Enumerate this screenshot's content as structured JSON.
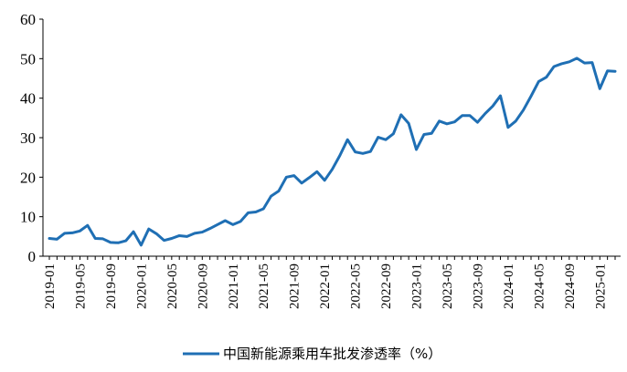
{
  "chart_data": {
    "type": "line",
    "title": "",
    "xlabel": "",
    "ylabel": "",
    "ylim": [
      0,
      60
    ],
    "yticks": [
      0,
      10,
      20,
      30,
      40,
      50,
      60
    ],
    "xtick_labels": [
      "2019-01",
      "2019-05",
      "2019-09",
      "2020-01",
      "2020-05",
      "2020-09",
      "2021-01",
      "2021-05",
      "2021-09",
      "2022-01",
      "2022-05",
      "2022-09",
      "2023-01",
      "2023-05",
      "2023-09",
      "2024-01",
      "2024-05",
      "2024-09",
      "2025-01"
    ],
    "grid": false,
    "legend_position": "bottom",
    "series": [
      {
        "name": "中国新能源乘用车批发渗透率（%）",
        "color": "#1f6fb4",
        "x": [
          "2019-01",
          "2019-02",
          "2019-03",
          "2019-04",
          "2019-05",
          "2019-06",
          "2019-07",
          "2019-08",
          "2019-09",
          "2019-10",
          "2019-11",
          "2019-12",
          "2020-01",
          "2020-02",
          "2020-03",
          "2020-04",
          "2020-05",
          "2020-06",
          "2020-07",
          "2020-08",
          "2020-09",
          "2020-10",
          "2020-11",
          "2020-12",
          "2021-01",
          "2021-02",
          "2021-03",
          "2021-04",
          "2021-05",
          "2021-06",
          "2021-07",
          "2021-08",
          "2021-09",
          "2021-10",
          "2021-11",
          "2021-12",
          "2022-01",
          "2022-02",
          "2022-03",
          "2022-04",
          "2022-05",
          "2022-06",
          "2022-07",
          "2022-08",
          "2022-09",
          "2022-10",
          "2022-11",
          "2022-12",
          "2023-01",
          "2023-02",
          "2023-03",
          "2023-04",
          "2023-05",
          "2023-06",
          "2023-07",
          "2023-08",
          "2023-09",
          "2023-10",
          "2023-11",
          "2023-12",
          "2024-01",
          "2024-02",
          "2024-03",
          "2024-04",
          "2024-05",
          "2024-06",
          "2024-07",
          "2024-08",
          "2024-09",
          "2024-10",
          "2024-11",
          "2024-12",
          "2025-01",
          "2025-02",
          "2025-03"
        ],
        "values": [
          4.5,
          4.3,
          5.8,
          5.9,
          6.4,
          7.8,
          4.5,
          4.4,
          3.5,
          3.4,
          3.9,
          6.2,
          2.8,
          6.9,
          5.7,
          4.0,
          4.5,
          5.2,
          5.0,
          5.8,
          6.1,
          7.0,
          8.0,
          9.0,
          8.0,
          8.8,
          11.0,
          11.2,
          12.0,
          15.2,
          16.5,
          20.0,
          20.4,
          18.5,
          19.9,
          21.4,
          19.2,
          22.0,
          25.5,
          29.5,
          26.4,
          26.0,
          26.5,
          30.1,
          29.5,
          31.0,
          35.8,
          33.6,
          27.0,
          30.8,
          31.1,
          34.2,
          33.5,
          34.0,
          35.6,
          35.6,
          33.9,
          36.1,
          38.0,
          40.6,
          32.6,
          34.2,
          37.0,
          40.5,
          44.2,
          45.3,
          48.0,
          48.7,
          49.2,
          50.1,
          48.9,
          49.0,
          42.4,
          46.9,
          46.8
        ]
      }
    ]
  }
}
